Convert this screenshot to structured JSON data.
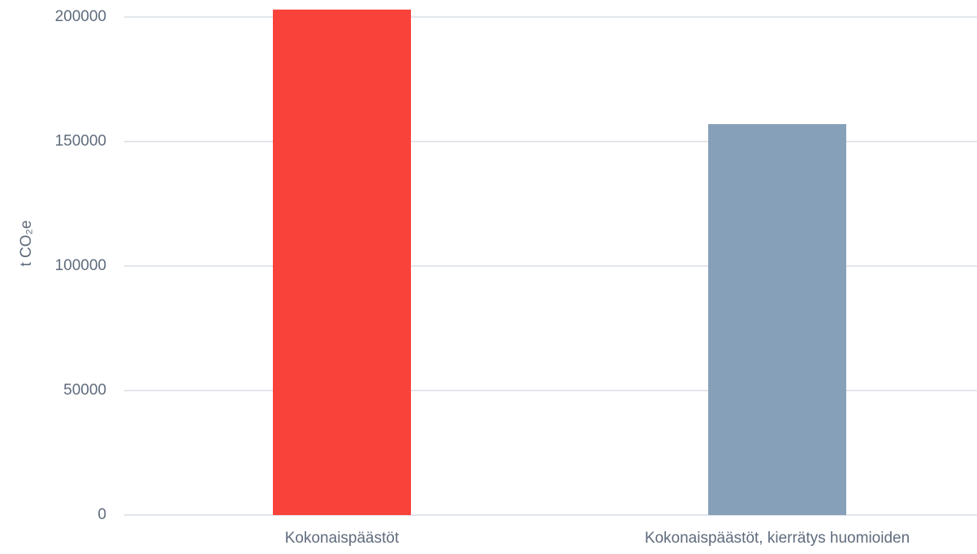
{
  "chart_data": {
    "type": "bar",
    "ylabel": "t CO₂e",
    "categories": [
      "Kokonaispäästöt",
      "Kokonaispäästöt, kierrätys huomioiden"
    ],
    "values": [
      203000,
      157000
    ],
    "colors": [
      "#f9423a",
      "#87a0b9"
    ],
    "ylim": [
      0,
      200000
    ],
    "yticks": [
      0,
      50000,
      100000,
      150000,
      200000
    ],
    "grid": true
  }
}
